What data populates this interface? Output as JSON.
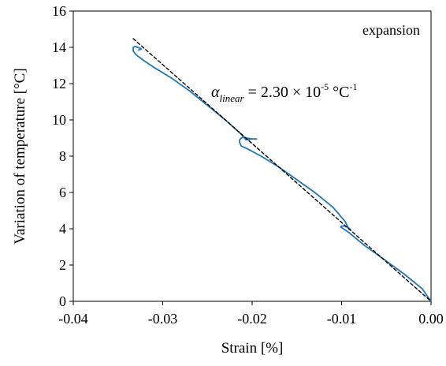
{
  "chart_data": {
    "type": "scatter",
    "xlabel": "Strain [%]",
    "ylabel": "Variation of temperature [°C]",
    "xlim": [
      -0.04,
      0.0
    ],
    "ylim": [
      0,
      16
    ],
    "x_ticks": [
      -0.04,
      -0.03,
      -0.02,
      -0.01,
      0.0
    ],
    "x_tick_labels": [
      "-0.04",
      "-0.03",
      "-0.02",
      "-0.01",
      "0.00"
    ],
    "y_ticks": [
      0,
      2,
      4,
      6,
      8,
      10,
      12,
      14,
      16
    ],
    "y_tick_labels": [
      "0",
      "2",
      "4",
      "6",
      "8",
      "10",
      "12",
      "14",
      "16"
    ],
    "grid": false,
    "annotation": "expansion",
    "formula": {
      "symbol": "α",
      "subscript": "linear",
      "value_text": " = 2.30 × 10",
      "exponent": "-5",
      "unit_text": " °C",
      "unit_exponent": "-1"
    },
    "series": [
      {
        "style": "solid",
        "color": "#1f77b4",
        "x": [
          0.0,
          -0.001,
          -0.003,
          -0.0055,
          -0.0075,
          -0.0092,
          -0.0098,
          -0.0101,
          -0.01,
          -0.0097,
          -0.0092,
          -0.009,
          -0.0092,
          -0.0096,
          -0.011,
          -0.013,
          -0.015,
          -0.017,
          -0.019,
          -0.0205,
          -0.0212,
          -0.0214,
          -0.0214,
          -0.0212,
          -0.021,
          -0.0207,
          -0.02,
          -0.0195,
          -0.02,
          -0.0207,
          -0.0212,
          -0.023,
          -0.025,
          -0.027,
          -0.029,
          -0.031,
          -0.0322,
          -0.033,
          -0.0333,
          -0.0333,
          -0.0331,
          -0.0328,
          -0.0325,
          -0.0324,
          -0.0327
        ],
        "y": [
          0.0,
          0.7,
          1.5,
          2.4,
          3.1,
          3.8,
          4.0,
          4.1,
          4.15,
          4.15,
          4.05,
          3.95,
          4.0,
          4.4,
          5.2,
          6.0,
          6.7,
          7.4,
          8.0,
          8.4,
          8.55,
          8.75,
          8.9,
          9.0,
          9.05,
          9.0,
          8.95,
          8.95,
          8.95,
          8.9,
          9.2,
          10.0,
          10.8,
          11.6,
          12.3,
          12.9,
          13.3,
          13.6,
          13.8,
          14.0,
          14.05,
          14.0,
          13.95,
          13.9,
          13.85
        ]
      },
      {
        "style": "dashed",
        "color": "#000000",
        "x": [
          -0.0333,
          0.0
        ],
        "y": [
          14.48,
          0.0
        ]
      }
    ]
  }
}
